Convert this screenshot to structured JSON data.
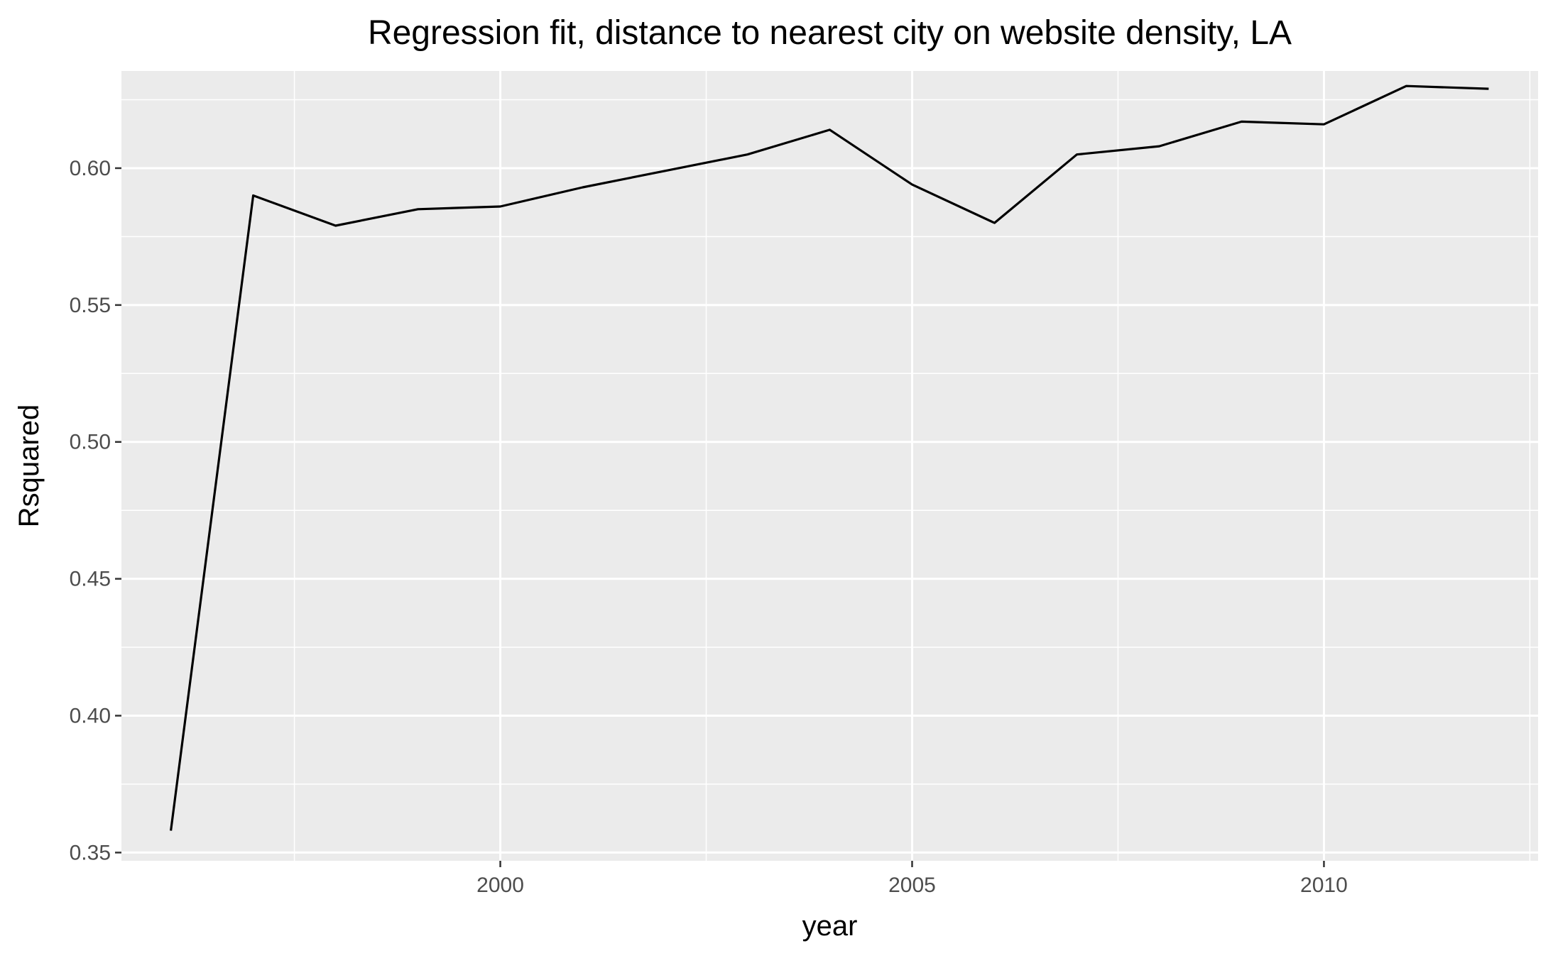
{
  "chart_data": {
    "type": "line",
    "title": "Regression fit, distance to nearest city on website density, LA",
    "xlabel": "year",
    "ylabel": "Rsquared",
    "xlim": [
      1995.4,
      2012.6
    ],
    "ylim": [
      0.347,
      0.6355
    ],
    "x_ticks": [
      2000,
      2005,
      2010
    ],
    "x_tick_labels": [
      "2000",
      "2005",
      "2010"
    ],
    "y_ticks": [
      0.35,
      0.4,
      0.45,
      0.5,
      0.55,
      0.6
    ],
    "y_tick_labels": [
      "0.35",
      "0.40",
      "0.45",
      "0.50",
      "0.55",
      "0.60"
    ],
    "grid": true,
    "legend": "none",
    "series": [
      {
        "color": "#000000",
        "x": [
          1996,
          1997,
          1998,
          1999,
          2000,
          2001,
          2002,
          2003,
          2004,
          2005,
          2006,
          2007,
          2008,
          2009,
          2010,
          2011,
          2012
        ],
        "y": [
          0.358,
          0.59,
          0.579,
          0.585,
          0.586,
          0.593,
          0.599,
          0.605,
          0.614,
          0.594,
          0.58,
          0.605,
          0.608,
          0.617,
          0.616,
          0.63,
          0.629
        ]
      }
    ]
  }
}
